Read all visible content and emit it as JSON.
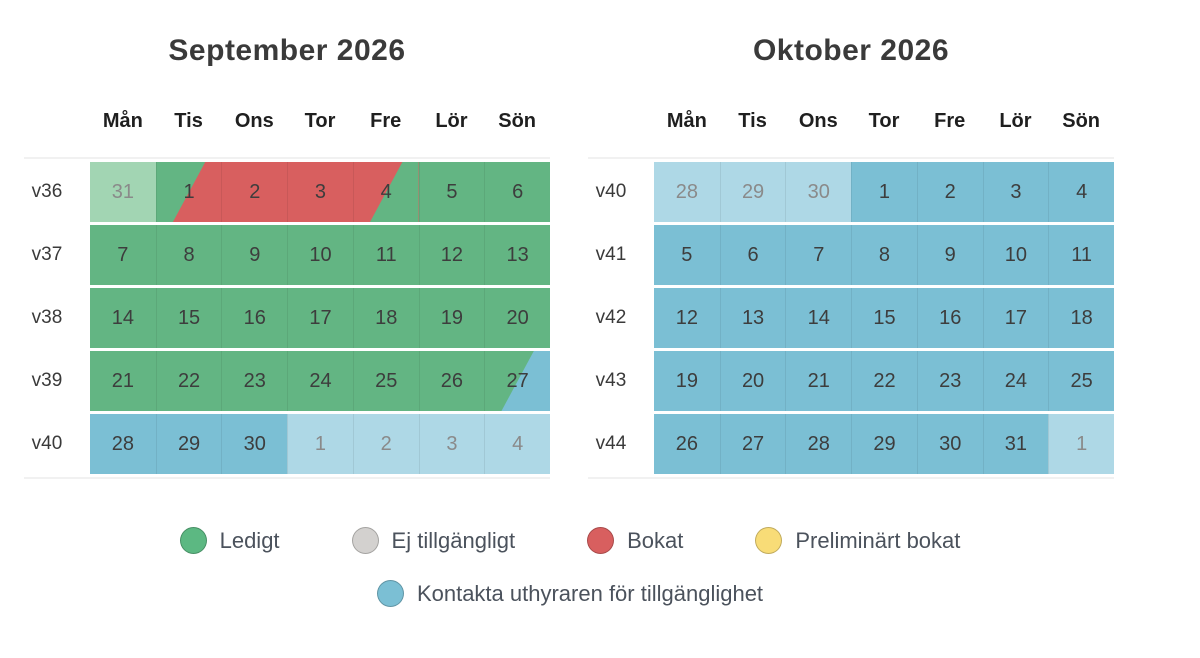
{
  "colors": {
    "free": "#63b583",
    "free_legend": "#5cb882",
    "free_muted": "#a2d5b3",
    "booked": "#d85f5f",
    "contact": "#7bbfd4",
    "contact_muted": "#aed8e6",
    "unavailable": "#d3d1cf",
    "preliminary": "#f8dc77",
    "day_text": "#3d3d3d",
    "muted_text": "#8a8a8a"
  },
  "calendars": [
    {
      "title": "September 2026",
      "day_headers": [
        "Mån",
        "Tis",
        "Ons",
        "Tor",
        "Fre",
        "Lör",
        "Sön"
      ],
      "weeks": [
        {
          "label": "v36",
          "days": [
            {
              "text": "31",
              "state": "free",
              "muted": true
            },
            {
              "text": "1",
              "state": "free",
              "overlay": "booked"
            },
            {
              "text": "2",
              "state": "booked"
            },
            {
              "text": "3",
              "state": "booked"
            },
            {
              "text": "4",
              "state": "booked",
              "overlay": "free"
            },
            {
              "text": "5",
              "state": "free"
            },
            {
              "text": "6",
              "state": "free"
            }
          ]
        },
        {
          "label": "v37",
          "days": [
            {
              "text": "7",
              "state": "free"
            },
            {
              "text": "8",
              "state": "free"
            },
            {
              "text": "9",
              "state": "free"
            },
            {
              "text": "10",
              "state": "free"
            },
            {
              "text": "11",
              "state": "free"
            },
            {
              "text": "12",
              "state": "free"
            },
            {
              "text": "13",
              "state": "free"
            }
          ]
        },
        {
          "label": "v38",
          "days": [
            {
              "text": "14",
              "state": "free"
            },
            {
              "text": "15",
              "state": "free"
            },
            {
              "text": "16",
              "state": "free"
            },
            {
              "text": "17",
              "state": "free"
            },
            {
              "text": "18",
              "state": "free"
            },
            {
              "text": "19",
              "state": "free"
            },
            {
              "text": "20",
              "state": "free"
            }
          ]
        },
        {
          "label": "v39",
          "days": [
            {
              "text": "21",
              "state": "free"
            },
            {
              "text": "22",
              "state": "free"
            },
            {
              "text": "23",
              "state": "free"
            },
            {
              "text": "24",
              "state": "free"
            },
            {
              "text": "25",
              "state": "free"
            },
            {
              "text": "26",
              "state": "free"
            },
            {
              "text": "27",
              "state": "free",
              "overlay": "contact"
            }
          ]
        },
        {
          "label": "v40",
          "days": [
            {
              "text": "28",
              "state": "contact"
            },
            {
              "text": "29",
              "state": "contact"
            },
            {
              "text": "30",
              "state": "contact"
            },
            {
              "text": "1",
              "state": "contact",
              "muted": true
            },
            {
              "text": "2",
              "state": "contact",
              "muted": true
            },
            {
              "text": "3",
              "state": "contact",
              "muted": true
            },
            {
              "text": "4",
              "state": "contact",
              "muted": true
            }
          ]
        }
      ]
    },
    {
      "title": "Oktober 2026",
      "day_headers": [
        "Mån",
        "Tis",
        "Ons",
        "Tor",
        "Fre",
        "Lör",
        "Sön"
      ],
      "weeks": [
        {
          "label": "v40",
          "days": [
            {
              "text": "28",
              "state": "contact",
              "muted": true
            },
            {
              "text": "29",
              "state": "contact",
              "muted": true
            },
            {
              "text": "30",
              "state": "contact",
              "muted": true
            },
            {
              "text": "1",
              "state": "contact"
            },
            {
              "text": "2",
              "state": "contact"
            },
            {
              "text": "3",
              "state": "contact"
            },
            {
              "text": "4",
              "state": "contact"
            }
          ]
        },
        {
          "label": "v41",
          "days": [
            {
              "text": "5",
              "state": "contact"
            },
            {
              "text": "6",
              "state": "contact"
            },
            {
              "text": "7",
              "state": "contact"
            },
            {
              "text": "8",
              "state": "contact"
            },
            {
              "text": "9",
              "state": "contact"
            },
            {
              "text": "10",
              "state": "contact"
            },
            {
              "text": "11",
              "state": "contact"
            }
          ]
        },
        {
          "label": "v42",
          "days": [
            {
              "text": "12",
              "state": "contact"
            },
            {
              "text": "13",
              "state": "contact"
            },
            {
              "text": "14",
              "state": "contact"
            },
            {
              "text": "15",
              "state": "contact"
            },
            {
              "text": "16",
              "state": "contact"
            },
            {
              "text": "17",
              "state": "contact"
            },
            {
              "text": "18",
              "state": "contact"
            }
          ]
        },
        {
          "label": "v43",
          "days": [
            {
              "text": "19",
              "state": "contact"
            },
            {
              "text": "20",
              "state": "contact"
            },
            {
              "text": "21",
              "state": "contact"
            },
            {
              "text": "22",
              "state": "contact"
            },
            {
              "text": "23",
              "state": "contact"
            },
            {
              "text": "24",
              "state": "contact"
            },
            {
              "text": "25",
              "state": "contact"
            }
          ]
        },
        {
          "label": "v44",
          "days": [
            {
              "text": "26",
              "state": "contact"
            },
            {
              "text": "27",
              "state": "contact"
            },
            {
              "text": "28",
              "state": "contact"
            },
            {
              "text": "29",
              "state": "contact"
            },
            {
              "text": "30",
              "state": "contact"
            },
            {
              "text": "31",
              "state": "contact"
            },
            {
              "text": "1",
              "state": "contact",
              "muted": true
            }
          ]
        }
      ]
    }
  ],
  "legend": {
    "rows": [
      [
        {
          "label": "Ledigt",
          "state": "free"
        },
        {
          "label": "Ej tillgängligt",
          "state": "unavailable"
        },
        {
          "label": "Bokat",
          "state": "booked"
        },
        {
          "label": "Preliminärt bokat",
          "state": "preliminary"
        }
      ],
      [
        {
          "label": "Kontakta uthyraren för tillgänglighet",
          "state": "contact"
        }
      ]
    ]
  }
}
